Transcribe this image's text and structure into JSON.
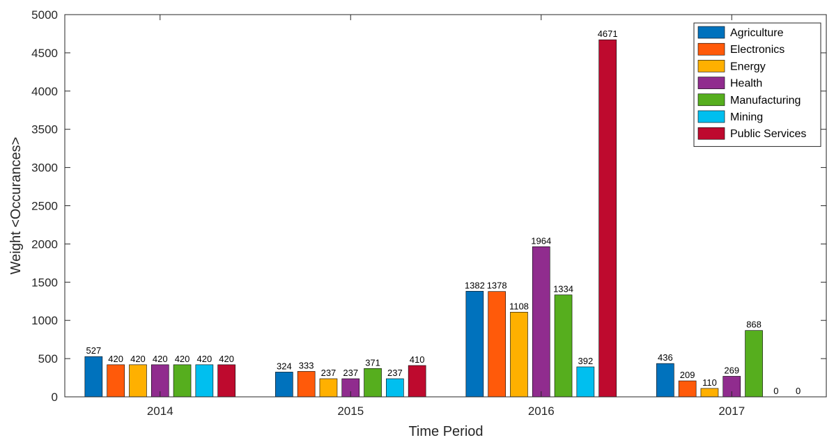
{
  "chart_data": {
    "type": "bar",
    "title": "",
    "xlabel": "Time Period",
    "ylabel": "Weight <Occurances>",
    "ylim": [
      0,
      5000
    ],
    "yticks": [
      0,
      500,
      1000,
      1500,
      2000,
      2500,
      3000,
      3500,
      4000,
      4500,
      5000
    ],
    "categories": [
      "2014",
      "2015",
      "2016",
      "2017"
    ],
    "grid": false,
    "legend_position": "top-right",
    "series": [
      {
        "name": "Agriculture",
        "color": "#0072BD",
        "values": [
          527,
          324,
          1382,
          436
        ]
      },
      {
        "name": "Electronics",
        "color": "#FF5A0A",
        "values": [
          420,
          333,
          1378,
          209
        ]
      },
      {
        "name": "Energy",
        "color": "#FFB000",
        "values": [
          420,
          237,
          1108,
          110
        ]
      },
      {
        "name": "Health",
        "color": "#902C8E",
        "values": [
          420,
          237,
          1964,
          269
        ]
      },
      {
        "name": "Manufacturing",
        "color": "#56AE1E",
        "values": [
          420,
          371,
          1334,
          868
        ]
      },
      {
        "name": "Mining",
        "color": "#00BFEF",
        "values": [
          420,
          237,
          392,
          0
        ]
      },
      {
        "name": "Public Services",
        "color": "#BE0A2E",
        "values": [
          420,
          410,
          4671,
          0
        ]
      }
    ]
  }
}
